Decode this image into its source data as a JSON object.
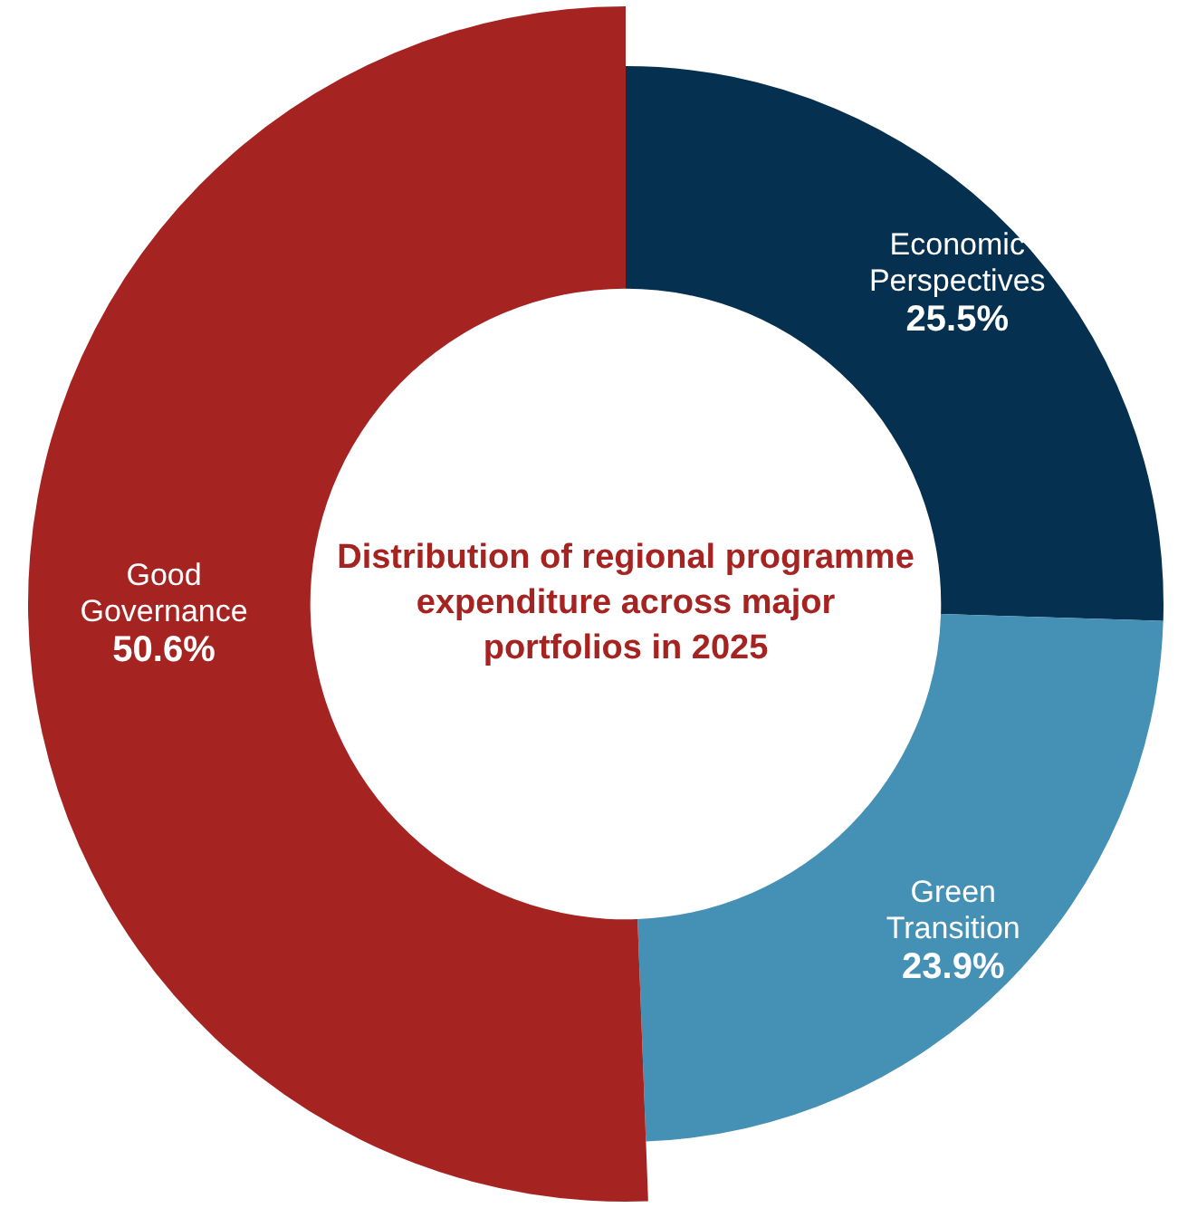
{
  "chart_data": {
    "type": "donut",
    "title": "Distribution of regional programme expenditure across major portfolios in 2025",
    "categories": [
      "Economic Perspectives",
      "Green Transition",
      "Good Governance"
    ],
    "values": [
      25.5,
      23.9,
      50.6
    ],
    "value_labels": [
      "25.5%",
      "23.9%",
      "50.6%"
    ],
    "colors": [
      "#06304f",
      "#4590b5",
      "#a52422"
    ],
    "legend": false
  }
}
